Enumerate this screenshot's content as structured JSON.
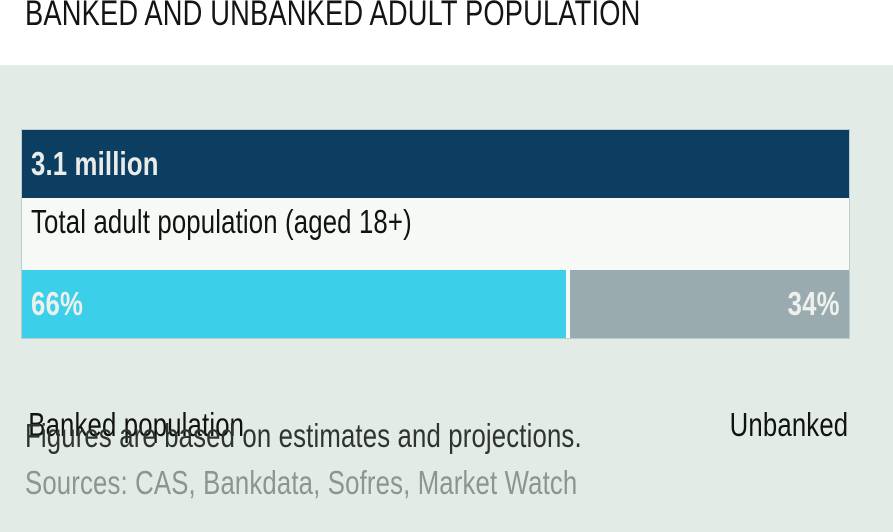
{
  "title": "BANKED AND UNBANKED ADULT POPULATION",
  "panel": {
    "total_value": "3.1 million",
    "total_label": "Total adult population (aged 18+)",
    "banked_pct_label": "66%",
    "unbanked_pct_label": "34%",
    "banked_label": "Banked population",
    "unbanked_label": "Unbanked"
  },
  "footnote": "Figures are based on estimates and projections.",
  "sources": "Sources: CAS, Bankdata, Sofres, Market Watch",
  "colors": {
    "navy": "#0b3e61",
    "cyan": "#3bcfe9",
    "gray": "#9aabaf",
    "panel_bg": "#e3ebe7",
    "bar_white": "#f6f9f6",
    "value_text": "#e9ece9"
  },
  "chart_data": {
    "type": "bar",
    "orientation": "horizontal",
    "title": "BANKED AND UNBANKED ADULT POPULATION",
    "total": {
      "value": 3.1,
      "unit": "million",
      "label": "Total adult population (aged 18+)"
    },
    "series": [
      {
        "name": "Banked population",
        "value": 66,
        "unit": "%"
      },
      {
        "name": "Unbanked",
        "value": 34,
        "unit": "%"
      }
    ],
    "legend": "none",
    "annotations": [
      "Figures are based on estimates and projections.",
      "Sources: CAS, Bankdata, Sofres, Market Watch"
    ]
  }
}
